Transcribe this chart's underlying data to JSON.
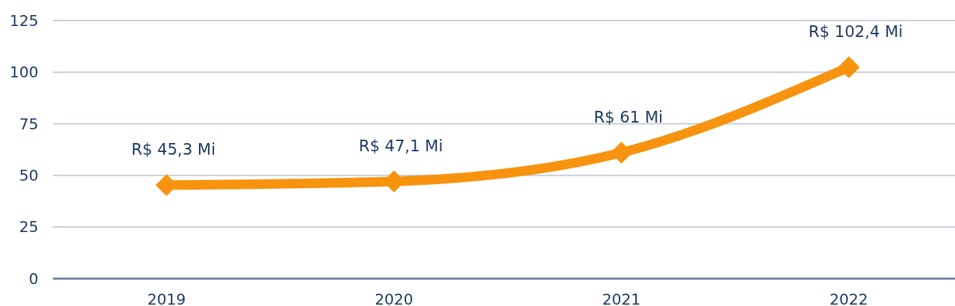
{
  "chart_data": {
    "type": "line",
    "categories": [
      "2019",
      "2020",
      "2021",
      "2022"
    ],
    "series": [
      {
        "color": "#f7930f",
        "values": [
          45.3,
          47.1,
          61,
          102.4
        ],
        "value_labels": [
          "R$ 45,3 Mi",
          "R$ 47,1 Mi",
          "R$ 61 Mi",
          "R$ 102,4 Mi"
        ]
      }
    ],
    "ylim": [
      0,
      125
    ],
    "yticks": [
      0,
      25,
      50,
      75,
      100,
      125
    ],
    "grid": "y",
    "marker": "diamond",
    "line_style": "solid"
  }
}
